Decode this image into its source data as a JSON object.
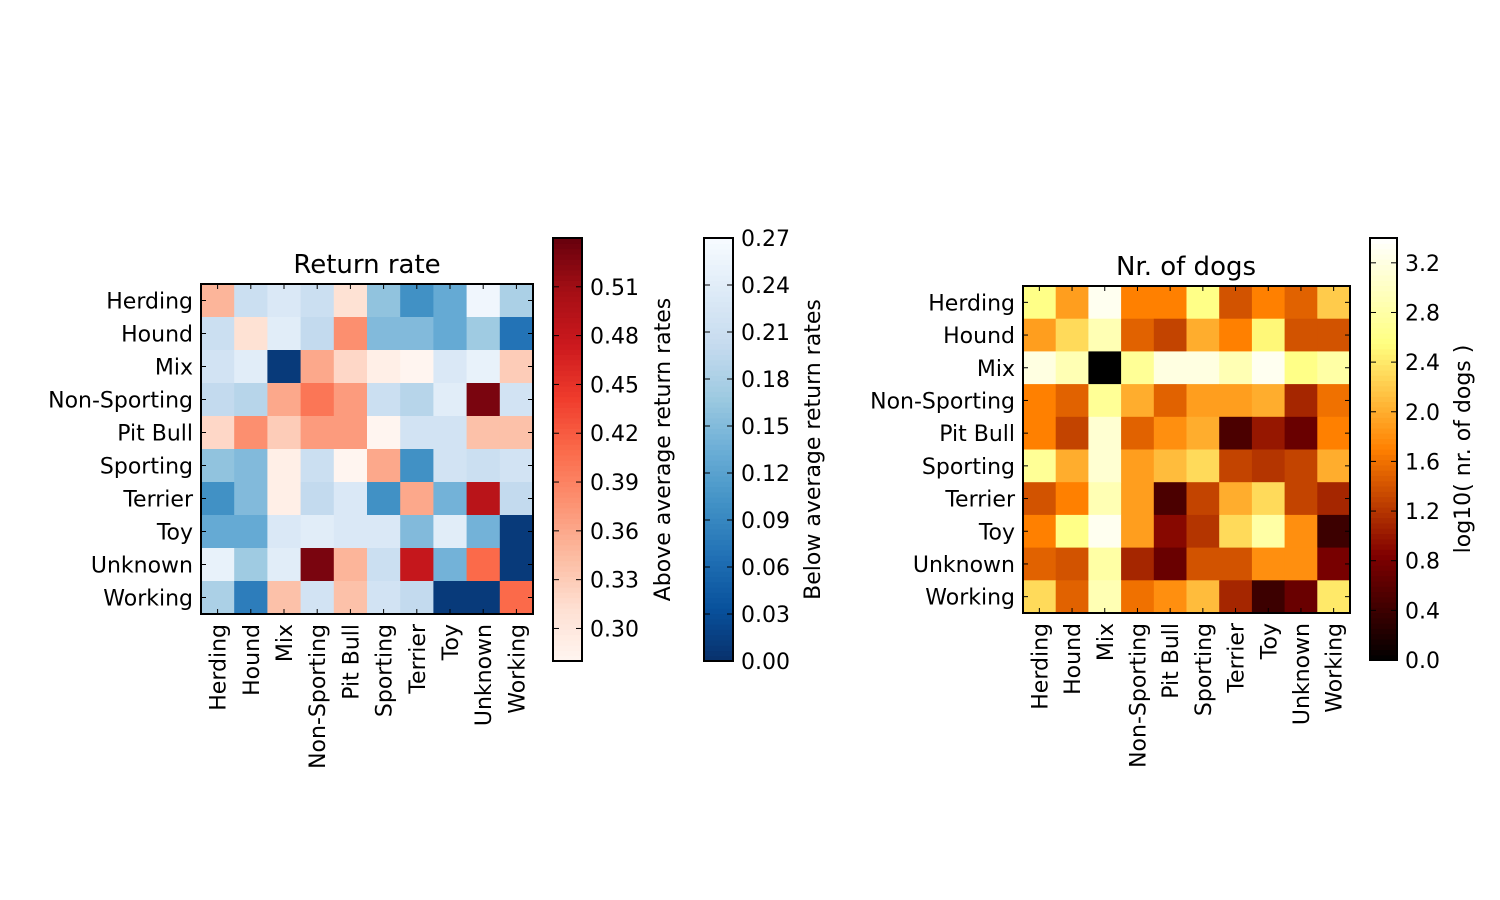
{
  "categories": [
    "Herding",
    "Hound",
    "Mix",
    "Non-Sporting",
    "Pit Bull",
    "Sporting",
    "Terrier",
    "Toy",
    "Unknown",
    "Working"
  ],
  "chart_data": [
    {
      "type": "heatmap",
      "title": "Return rate",
      "rows": [
        "Herding",
        "Hound",
        "Mix",
        "Non-Sporting",
        "Pit Bull",
        "Sporting",
        "Terrier",
        "Toy",
        "Unknown",
        "Working"
      ],
      "columns": [
        "Herding",
        "Hound",
        "Mix",
        "Non-Sporting",
        "Pit Bull",
        "Sporting",
        "Terrier",
        "Toy",
        "Unknown",
        "Working"
      ],
      "values": [
        [
          0.35,
          0.21,
          0.23,
          0.21,
          0.31,
          0.16,
          0.1,
          0.13,
          0.26,
          0.18
        ],
        [
          0.21,
          0.31,
          0.24,
          0.2,
          0.38,
          0.15,
          0.15,
          0.13,
          0.17,
          0.07
        ],
        [
          0.22,
          0.24,
          0.01,
          0.36,
          0.32,
          0.29,
          0.28,
          0.23,
          0.25,
          0.33
        ],
        [
          0.2,
          0.19,
          0.36,
          0.4,
          0.37,
          0.21,
          0.19,
          0.24,
          0.53,
          0.22
        ],
        [
          0.32,
          0.38,
          0.33,
          0.37,
          0.37,
          0.28,
          0.22,
          0.22,
          0.34,
          0.34
        ],
        [
          0.16,
          0.15,
          0.29,
          0.21,
          0.28,
          0.36,
          0.1,
          0.22,
          0.21,
          0.22
        ],
        [
          0.1,
          0.15,
          0.29,
          0.2,
          0.23,
          0.1,
          0.36,
          0.14,
          0.49,
          0.2
        ],
        [
          0.13,
          0.13,
          0.23,
          0.24,
          0.23,
          0.23,
          0.15,
          0.24,
          0.14,
          0.01
        ],
        [
          0.25,
          0.17,
          0.24,
          0.53,
          0.35,
          0.21,
          0.48,
          0.14,
          0.41,
          0.01
        ],
        [
          0.18,
          0.08,
          0.34,
          0.22,
          0.34,
          0.22,
          0.2,
          0.01,
          0.01,
          0.41
        ]
      ],
      "colorbars": [
        {
          "label": "Above average return rates",
          "colormap": "Reds",
          "range": [
            0.28,
            0.54
          ],
          "ticks": [
            "0.30",
            "0.33",
            "0.36",
            "0.39",
            "0.42",
            "0.45",
            "0.48",
            "0.51"
          ],
          "tick_values": [
            0.3,
            0.33,
            0.36,
            0.39,
            0.42,
            0.45,
            0.48,
            0.51
          ]
        },
        {
          "label": "Below average return rates",
          "colormap": "Blues_r",
          "range": [
            0.0,
            0.27
          ],
          "ticks": [
            "0.00",
            "0.03",
            "0.06",
            "0.09",
            "0.12",
            "0.15",
            "0.18",
            "0.21",
            "0.24",
            "0.27"
          ],
          "tick_values": [
            0.0,
            0.03,
            0.06,
            0.09,
            0.12,
            0.15,
            0.18,
            0.21,
            0.24,
            0.27
          ]
        }
      ],
      "split_threshold": 0.28
    },
    {
      "type": "heatmap",
      "title": "Nr. of dogs",
      "rows": [
        "Herding",
        "Hound",
        "Mix",
        "Non-Sporting",
        "Pit Bull",
        "Sporting",
        "Terrier",
        "Toy",
        "Unknown",
        "Working"
      ],
      "columns": [
        "Herding",
        "Hound",
        "Mix",
        "Non-Sporting",
        "Pit Bull",
        "Sporting",
        "Terrier",
        "Toy",
        "Unknown",
        "Working"
      ],
      "values": [
        [
          2.6,
          1.9,
          3.3,
          1.7,
          1.7,
          2.6,
          1.4,
          1.7,
          1.5,
          2.2
        ],
        [
          1.9,
          2.3,
          2.9,
          1.5,
          1.3,
          2.0,
          1.7,
          2.5,
          1.4,
          1.4
        ],
        [
          3.2,
          2.9,
          0.0,
          2.7,
          3.2,
          3.2,
          2.9,
          3.3,
          2.6,
          2.8
        ],
        [
          1.7,
          1.5,
          2.7,
          2.0,
          1.5,
          1.9,
          1.9,
          2.0,
          1.1,
          1.6
        ],
        [
          1.7,
          1.3,
          3.1,
          1.5,
          1.8,
          2.0,
          0.5,
          1.0,
          0.7,
          1.7
        ],
        [
          2.7,
          2.0,
          3.1,
          1.9,
          2.1,
          2.3,
          1.3,
          1.2,
          1.3,
          2.0
        ],
        [
          1.4,
          1.7,
          2.9,
          1.9,
          0.5,
          1.3,
          2.0,
          2.3,
          1.3,
          1.1
        ],
        [
          1.7,
          2.6,
          3.3,
          1.9,
          0.9,
          1.2,
          2.3,
          2.8,
          1.8,
          0.4
        ],
        [
          1.5,
          1.4,
          2.8,
          1.1,
          0.7,
          1.4,
          1.4,
          1.8,
          1.8,
          0.8
        ],
        [
          2.3,
          1.5,
          2.9,
          1.6,
          1.8,
          2.1,
          1.1,
          0.4,
          0.7,
          2.4
        ]
      ],
      "colorbars": [
        {
          "label": "log10( nr. of dogs )",
          "colormap": "afmhot",
          "range": [
            0.0,
            3.4
          ],
          "ticks": [
            "0.0",
            "0.4",
            "0.8",
            "1.2",
            "1.6",
            "2.0",
            "2.4",
            "2.8",
            "3.2"
          ],
          "tick_values": [
            0.0,
            0.4,
            0.8,
            1.2,
            1.6,
            2.0,
            2.4,
            2.8,
            3.2
          ]
        }
      ]
    }
  ]
}
